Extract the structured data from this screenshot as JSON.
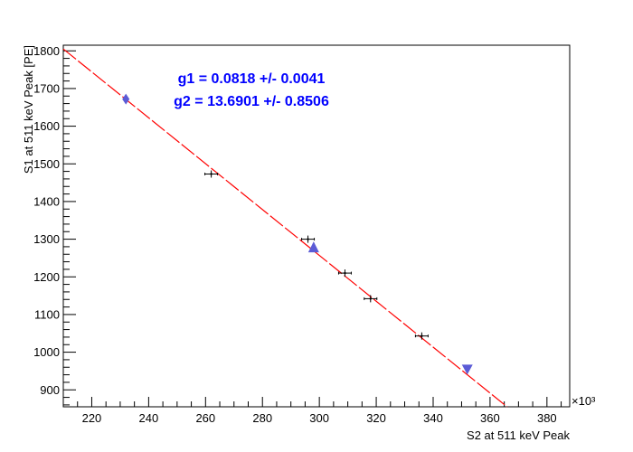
{
  "chart_data": {
    "type": "scatter",
    "title": "",
    "xlabel": "S2 at 511 keV Peak",
    "ylabel": "S1 at 511 keV Peak [PE]",
    "x_multiplier": "×10³",
    "xlim": [
      210,
      388
    ],
    "ylim": [
      855,
      1815
    ],
    "x_ticks": [
      "220",
      "240",
      "260",
      "280",
      "300",
      "320",
      "340",
      "360",
      "380"
    ],
    "y_ticks": [
      "900",
      "1000",
      "1100",
      "1200",
      "1300",
      "1400",
      "1500",
      "1600",
      "1700",
      "1800"
    ],
    "grid": false,
    "annotations": [
      "g1 = 0.0818 +/- 0.0041",
      "g2 = 13.6901 +/- 0.8506"
    ],
    "series": [
      {
        "marker": "cross-errorbar",
        "color": "#000000",
        "points": [
          {
            "x": 262,
            "y": 1473
          },
          {
            "x": 296,
            "y": 1300
          },
          {
            "x": 309,
            "y": 1210
          },
          {
            "x": 318,
            "y": 1142
          },
          {
            "x": 336,
            "y": 1043
          }
        ]
      },
      {
        "marker": "diamond",
        "color": "#5b5bd6",
        "points": [
          {
            "x": 232,
            "y": 1672
          }
        ]
      },
      {
        "marker": "triangle-up",
        "color": "#5b5bd6",
        "points": [
          {
            "x": 298,
            "y": 1277
          }
        ]
      },
      {
        "marker": "triangle-down",
        "color": "#5b5bd6",
        "points": [
          {
            "x": 352,
            "y": 955
          }
        ]
      }
    ],
    "fit_line": {
      "color": "#ff0000",
      "style": "dashed",
      "points": [
        {
          "x": 210,
          "y": 1805
        },
        {
          "x": 366,
          "y": 855
        }
      ]
    }
  }
}
